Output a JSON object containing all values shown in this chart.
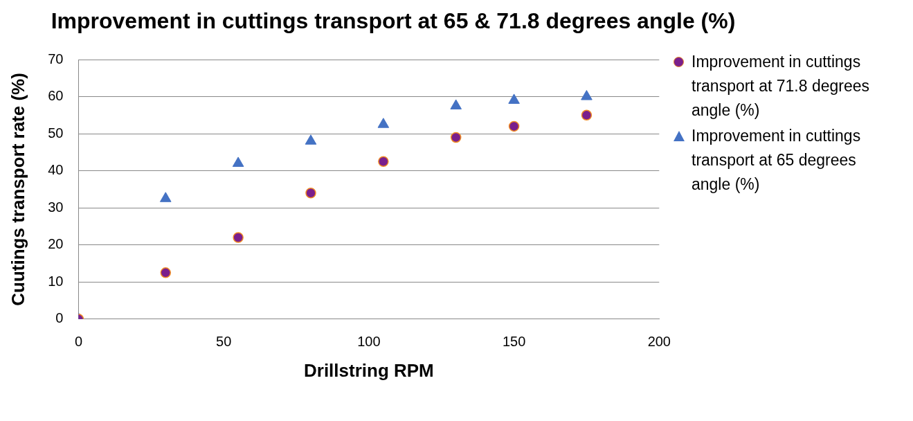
{
  "chart_data": {
    "type": "scatter",
    "title": "Improvement in cuttings transport at 65 & 71.8 degrees angle (%)",
    "xlabel": "Drillstring RPM",
    "ylabel": "Cuutings transport rate (%)",
    "x": [
      0,
      30,
      55,
      80,
      105,
      130,
      150,
      175
    ],
    "series": [
      {
        "name": "Improvement in cuttings transport at 71.8 degrees angle (%)",
        "color": "#7a1f8c",
        "marker": "circle",
        "values": [
          0,
          12.5,
          22,
          34,
          42.5,
          49,
          52,
          55
        ]
      },
      {
        "name": "Improvement in cuttings transport at 65 degrees angle (%)",
        "color": "#4472c4",
        "marker": "triangle",
        "values": [
          0,
          32.5,
          42,
          48,
          52.5,
          57.5,
          59,
          60
        ]
      }
    ],
    "xlim": [
      0,
      200
    ],
    "xticks": [
      0,
      50,
      100,
      150,
      200
    ],
    "ylim": [
      0,
      70
    ],
    "yticks": [
      0,
      10,
      20,
      30,
      40,
      50,
      60,
      70
    ],
    "grid": "y",
    "legend": "right"
  }
}
